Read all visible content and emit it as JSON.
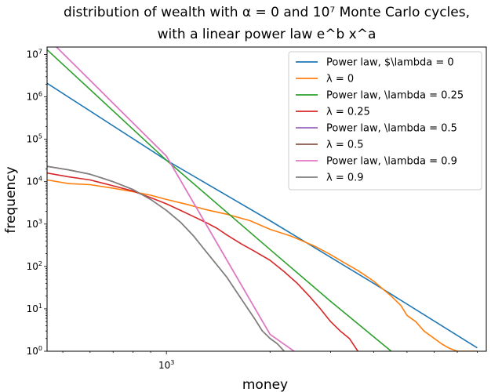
{
  "chart_data": {
    "type": "line",
    "title_line1": "distribution of wealth with α = 0 and  10⁷ Monte Carlo cycles,",
    "title_line2": "with a linear power law e^b x^a",
    "xlabel": "money",
    "ylabel": "frequency",
    "xscale": "log",
    "yscale": "log",
    "xlim": [
      450,
      8500
    ],
    "ylim": [
      1,
      15000000
    ],
    "x_tick_labels": [
      {
        "value": 1000,
        "exp": "3"
      }
    ],
    "y_tick_labels": [
      {
        "value": 1,
        "exp": "0"
      },
      {
        "value": 10,
        "exp": "1"
      },
      {
        "value": 100,
        "exp": "2"
      },
      {
        "value": 1000,
        "exp": "3"
      },
      {
        "value": 10000,
        "exp": "4"
      },
      {
        "value": 100000,
        "exp": "5"
      },
      {
        "value": 1000000,
        "exp": "6"
      },
      {
        "value": 10000000,
        "exp": "7"
      }
    ],
    "legend_position": "upper right",
    "series": [
      {
        "name": "Power law, $\\lambda = 0",
        "color": "#1f77b4",
        "kind": "fit",
        "x": [
          450,
          1000,
          2000,
          4000,
          8000
        ],
        "y": [
          2100000,
          32000,
          1200,
          40,
          1.2
        ]
      },
      {
        "name": "λ = 0",
        "color": "#ff7f0e",
        "kind": "data",
        "x": [
          450,
          520,
          600,
          700,
          800,
          900,
          1000,
          1150,
          1300,
          1500,
          1750,
          2000,
          2300,
          2700,
          3000,
          3300,
          3600,
          3800,
          4000,
          4200,
          4500,
          4800,
          5000,
          5300,
          5600,
          6000,
          6300,
          6600,
          7000,
          7500,
          8000
        ],
        "y": [
          11000,
          9000,
          8500,
          7000,
          5800,
          4800,
          3800,
          2900,
          2200,
          1700,
          1200,
          750,
          520,
          300,
          190,
          120,
          80,
          60,
          45,
          32,
          20,
          12,
          7,
          5,
          3,
          2,
          1.5,
          1.2,
          1,
          1,
          1
        ]
      },
      {
        "name": "Power law, \\lambda = 0.25",
        "color": "#2ca02c",
        "kind": "fit",
        "x": [
          450,
          1000,
          2000,
          3000,
          4500
        ],
        "y": [
          13000000,
          32000,
          250,
          15,
          1
        ]
      },
      {
        "name": "λ = 0.25",
        "color": "#d62728",
        "kind": "data",
        "x": [
          450,
          520,
          600,
          700,
          800,
          900,
          1000,
          1100,
          1200,
          1300,
          1400,
          1500,
          1650,
          1800,
          2000,
          2200,
          2400,
          2600,
          2800,
          3000,
          3200,
          3400,
          3600
        ],
        "y": [
          16000,
          13000,
          11000,
          8000,
          6000,
          4200,
          3000,
          2100,
          1500,
          1100,
          800,
          550,
          340,
          230,
          140,
          75,
          40,
          20,
          10,
          5,
          3,
          2,
          1
        ]
      },
      {
        "name": "Power law, \\lambda = 0.5",
        "color": "#9467bd",
        "kind": "fit",
        "x": [
          450,
          1000,
          2000,
          2350
        ],
        "y": [
          25000000,
          40000,
          2.5,
          1
        ]
      },
      {
        "name": "λ = 0.5",
        "color": "#8c564b",
        "kind": "data",
        "x": [
          450,
          520,
          600,
          700,
          800,
          900,
          1000,
          1100,
          1200,
          1300,
          1400,
          1500,
          1600,
          1700,
          1800,
          1900,
          2000,
          2100,
          2200
        ],
        "y": [
          23000,
          19000,
          15000,
          10000,
          6500,
          3800,
          2100,
          1100,
          520,
          230,
          110,
          55,
          25,
          12,
          6,
          3,
          2,
          1.5,
          1
        ]
      },
      {
        "name": "Power law, \\lambda = 0.9",
        "color": "#e377c2",
        "kind": "fit",
        "x": [
          450,
          1000,
          2000,
          2350
        ],
        "y": [
          25000000,
          40000,
          2.5,
          1
        ]
      },
      {
        "name": "λ = 0.9",
        "color": "#7f7f7f",
        "kind": "data",
        "x": [
          450,
          520,
          600,
          700,
          800,
          900,
          1000,
          1100,
          1200,
          1300,
          1400,
          1500,
          1600,
          1700,
          1800,
          1900,
          2000,
          2100,
          2200
        ],
        "y": [
          23000,
          19000,
          15000,
          10000,
          6500,
          3800,
          2100,
          1100,
          520,
          230,
          110,
          55,
          25,
          12,
          6,
          3,
          2,
          1.5,
          1
        ]
      }
    ]
  }
}
